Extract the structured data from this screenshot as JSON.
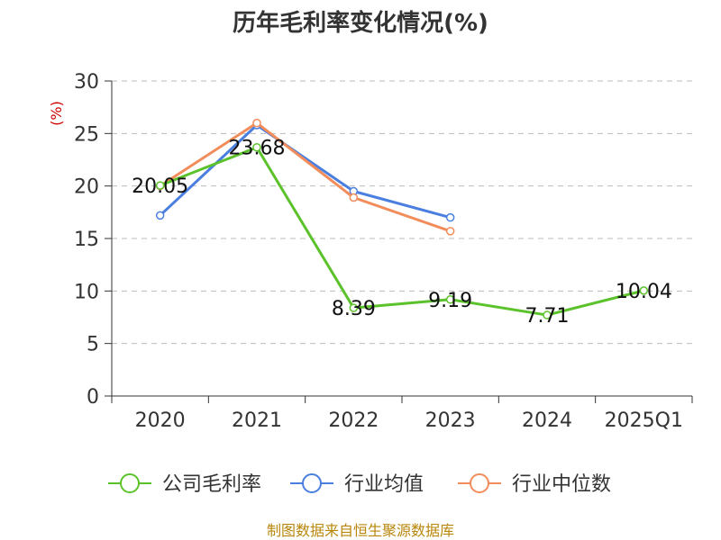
{
  "chart_data": {
    "type": "line",
    "title": "历年毛利率变化情况(%)",
    "ylabel": "(%)",
    "categories": [
      "2020",
      "2021",
      "2022",
      "2023",
      "2024",
      "2025Q1"
    ],
    "ylim": [
      0,
      30
    ],
    "yticks": [
      0,
      5,
      10,
      15,
      20,
      25,
      30
    ],
    "grid": true,
    "legend_position": "bottom",
    "series": [
      {
        "name": "公司毛利率",
        "color": "#5bc22b",
        "values": [
          20.05,
          23.68,
          8.39,
          9.19,
          7.71,
          10.04
        ],
        "labels": [
          "20.05",
          "23.68",
          "8.39",
          "9.19",
          "7.71",
          "10.04"
        ]
      },
      {
        "name": "行业均值",
        "color": "#4a7fe0",
        "values": [
          17.2,
          25.8,
          19.5,
          17.0,
          null,
          null
        ]
      },
      {
        "name": "行业中位数",
        "color": "#f28c5a",
        "values": [
          20.0,
          26.0,
          18.9,
          15.7,
          null,
          null
        ]
      }
    ],
    "source": "制图数据来自恒生聚源数据库"
  }
}
